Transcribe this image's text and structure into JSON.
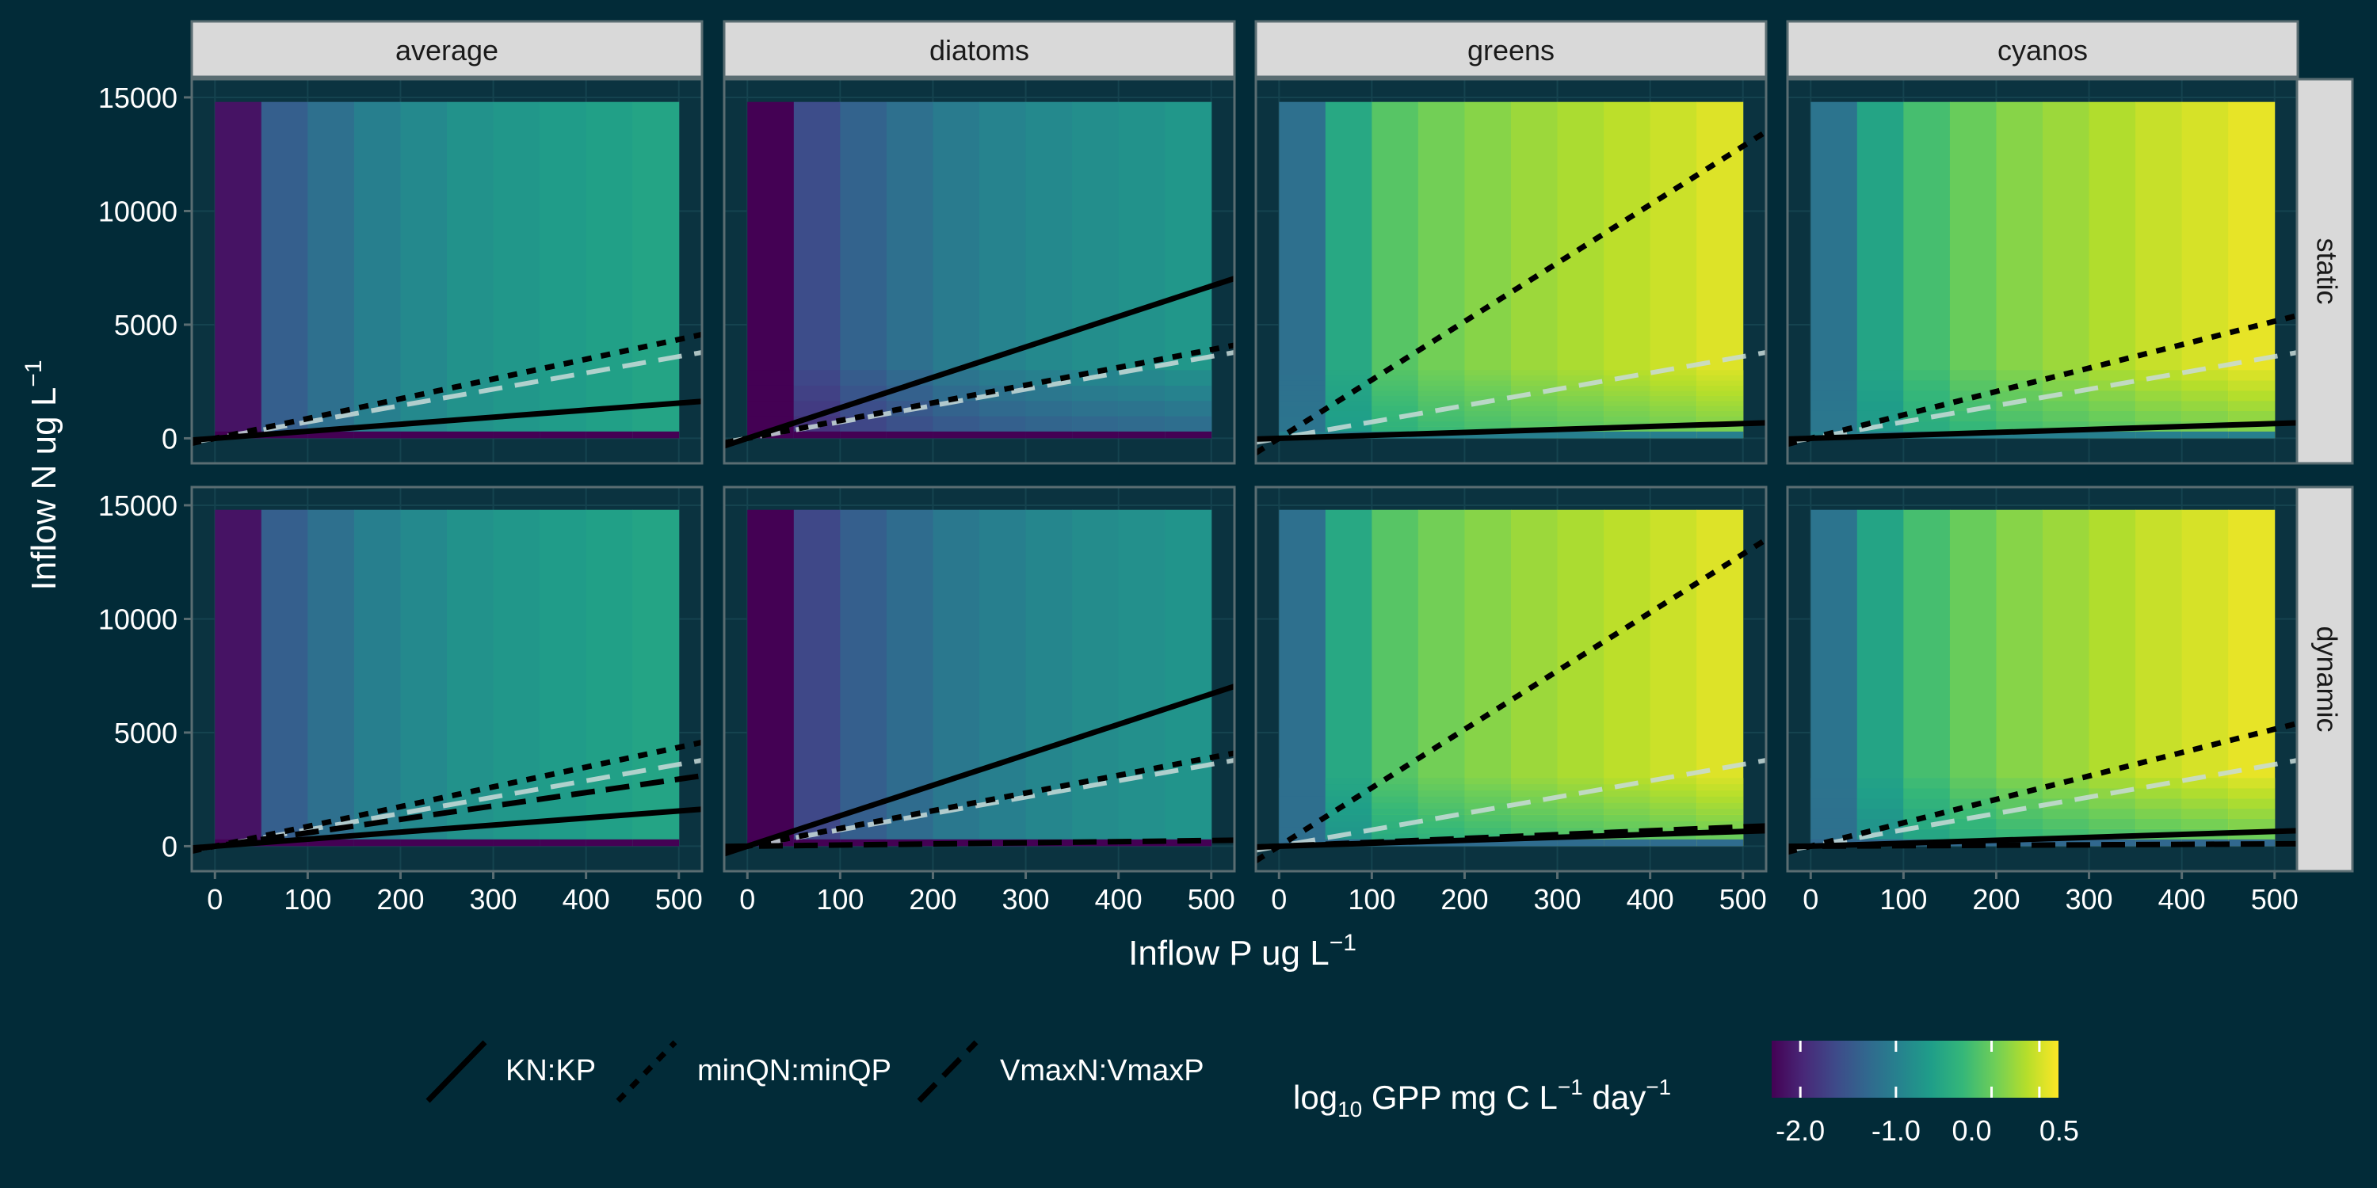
{
  "chart_data": {
    "type": "heatmap",
    "facets": {
      "columns": [
        "average",
        "diatoms",
        "greens",
        "cyanos"
      ],
      "rows": [
        "static",
        "dynamic"
      ]
    },
    "xlabel_main": "Inflow P ug L",
    "xlabel_sup": "−1",
    "ylabel_main": "Inflow N ug L",
    "ylabel_sup": "−1",
    "xlim": [
      -25,
      525
    ],
    "ylim": [
      -1100,
      15800
    ],
    "x_ticks": [
      0,
      100,
      200,
      300,
      400,
      500
    ],
    "x_tick_labels": [
      "0",
      "100",
      "200",
      "300",
      "400",
      "500"
    ],
    "y_ticks": [
      0,
      5000,
      10000,
      15000
    ],
    "y_tick_labels": [
      "0",
      "5000",
      "10000",
      "15000"
    ],
    "x_bins": [
      0,
      50,
      100,
      150,
      200,
      250,
      300,
      350,
      400,
      450,
      500
    ],
    "fill_scale": {
      "name_parts": [
        "log",
        "10",
        " GPP mg C L",
        "−1",
        " day",
        "−1"
      ],
      "min": -2.3,
      "max": 0.7,
      "ticks": [
        -2.0,
        -1.0,
        0.0,
        0.5
      ],
      "tick_labels": [
        "-2.0",
        "-1.0",
        "0.0",
        "0.5"
      ],
      "colors": [
        "#440154",
        "#482878",
        "#3e4a89",
        "#31688e",
        "#26828e",
        "#1f9e89",
        "#35b779",
        "#6ece58",
        "#b5de2b",
        "#fde725"
      ]
    },
    "legend": {
      "position": "bottom",
      "entries": [
        {
          "label": "KN:KP",
          "linetype": "solid"
        },
        {
          "label": "minQN:minQP",
          "linetype": "dotted"
        },
        {
          "label": "VmaxN:VmaxP",
          "linetype": "dashed"
        }
      ]
    },
    "panels": [
      {
        "col": "average",
        "row": "static",
        "column_values": [
          -2.15,
          -1.4,
          -1.2,
          -1.0,
          -0.88,
          -0.78,
          -0.72,
          -0.66,
          -0.6,
          -0.55
        ],
        "low_n_value": -2.3,
        "low_n_rows": 1,
        "low_n_ramp": 0,
        "ratio_lines": {
          "KN:KP": 3.1,
          "minQN:minQP": 8.7
        }
      },
      {
        "col": "diatoms",
        "row": "static",
        "column_values": [
          -2.4,
          -1.6,
          -1.35,
          -1.2,
          -1.05,
          -0.95,
          -0.88,
          -0.82,
          -0.78,
          -0.72
        ],
        "low_n_value": -2.4,
        "low_n_rows": 1,
        "low_n_ramp": 4,
        "ratio_lines": {
          "KN:KP": 13.4,
          "minQN:minQP": 7.8
        }
      },
      {
        "col": "greens",
        "row": "static",
        "column_values": [
          -1.2,
          -0.5,
          -0.1,
          0.05,
          0.15,
          0.25,
          0.32,
          0.4,
          0.47,
          0.55
        ],
        "low_n_value": -1.0,
        "low_n_rows": 1,
        "low_n_ramp": 12,
        "ratio_lines": {
          "KN:KP": 1.3,
          "minQN:minQP": 25.7
        }
      },
      {
        "col": "cyanos",
        "row": "static",
        "column_values": [
          -1.15,
          -0.55,
          -0.2,
          0.0,
          0.15,
          0.25,
          0.35,
          0.45,
          0.52,
          0.6
        ],
        "low_n_value": -1.0,
        "low_n_rows": 1,
        "low_n_ramp": 6,
        "ratio_lines": {
          "KN:KP": 1.3,
          "minQN:minQP": 10.3
        }
      },
      {
        "col": "average",
        "row": "dynamic",
        "column_values": [
          -2.15,
          -1.4,
          -1.2,
          -1.0,
          -0.88,
          -0.78,
          -0.72,
          -0.66,
          -0.6,
          -0.55
        ],
        "low_n_value": -2.3,
        "low_n_rows": 1,
        "low_n_ramp": 0,
        "ratio_lines": {
          "KN:KP": 3.1,
          "minQN:minQP": 8.7,
          "VmaxN:VmaxP": 5.9
        }
      },
      {
        "col": "diatoms",
        "row": "dynamic",
        "column_values": [
          -2.4,
          -1.65,
          -1.4,
          -1.25,
          -1.1,
          -1.0,
          -0.92,
          -0.85,
          -0.8,
          -0.75
        ],
        "low_n_value": -2.4,
        "low_n_rows": 1,
        "low_n_ramp": 0,
        "ratio_lines": {
          "KN:KP": 13.4,
          "minQN:minQP": 7.8,
          "VmaxN:VmaxP": 0.5
        }
      },
      {
        "col": "greens",
        "row": "dynamic",
        "column_values": [
          -1.2,
          -0.5,
          -0.1,
          0.05,
          0.15,
          0.25,
          0.32,
          0.4,
          0.47,
          0.55
        ],
        "low_n_value": -1.25,
        "low_n_rows": 1,
        "low_n_ramp": 10,
        "ratio_lines": {
          "KN:KP": 1.3,
          "minQN:minQP": 25.7,
          "VmaxN:VmaxP": 1.7
        }
      },
      {
        "col": "cyanos",
        "row": "dynamic",
        "column_values": [
          -1.15,
          -0.55,
          -0.2,
          0.0,
          0.15,
          0.25,
          0.35,
          0.45,
          0.52,
          0.6
        ],
        "low_n_value": -1.3,
        "low_n_rows": 1,
        "low_n_ramp": 6,
        "ratio_lines": {
          "KN:KP": 1.3,
          "minQN:minQP": 10.3,
          "VmaxN:VmaxP": 0.2
        }
      }
    ],
    "reference_line": {
      "slope": 7.2,
      "style": "dashed",
      "color": "#c9dbd9"
    }
  }
}
